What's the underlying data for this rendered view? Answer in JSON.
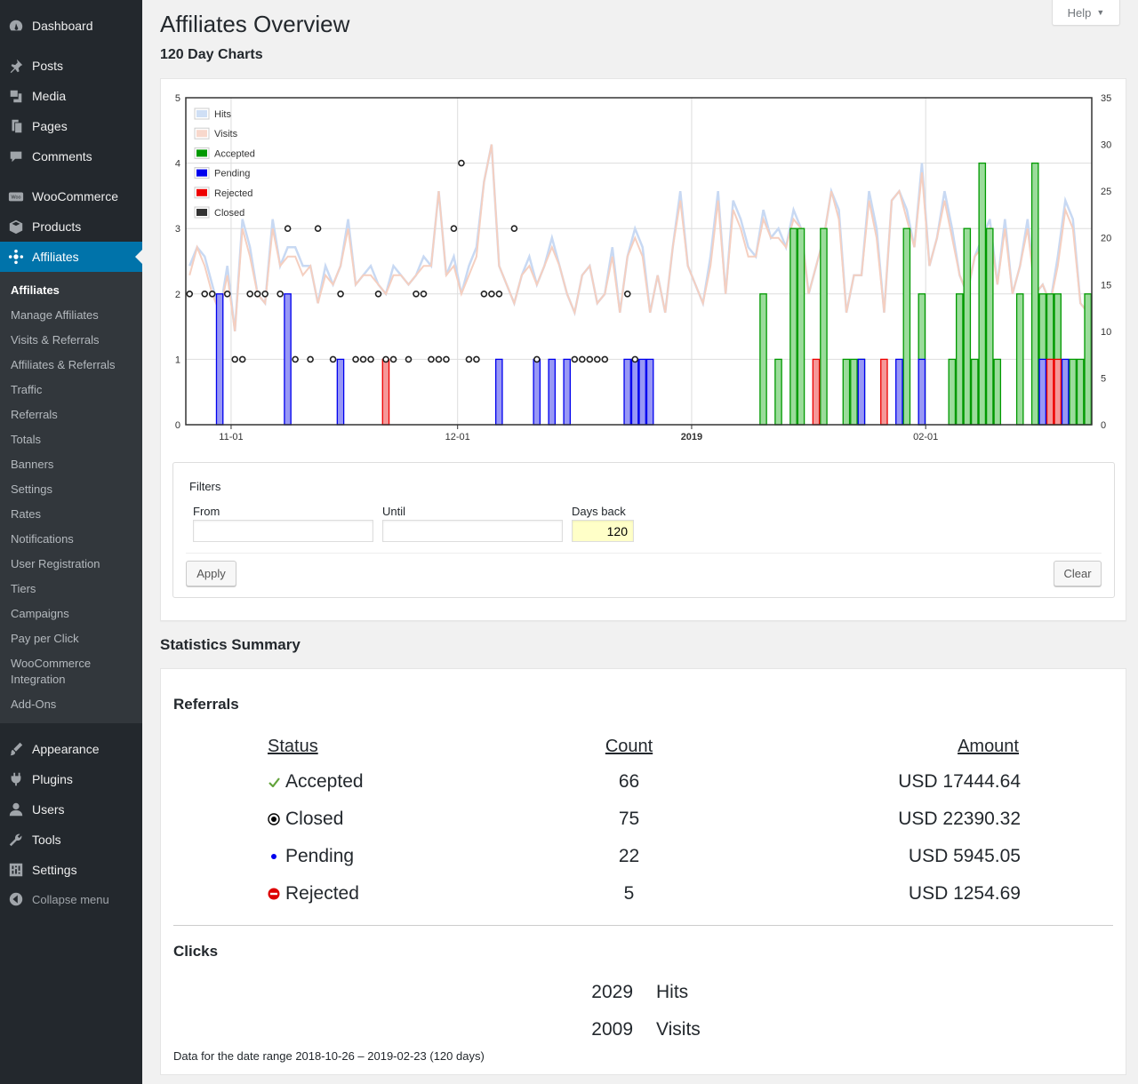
{
  "sidebar": {
    "top_items": [
      {
        "label": "Dashboard",
        "icon": "dashboard-icon"
      },
      {
        "label": "Posts",
        "icon": "pin-icon"
      },
      {
        "label": "Media",
        "icon": "media-icon"
      },
      {
        "label": "Pages",
        "icon": "pages-icon"
      },
      {
        "label": "Comments",
        "icon": "comment-icon"
      },
      {
        "label": "WooCommerce",
        "icon": "woo-icon"
      },
      {
        "label": "Products",
        "icon": "box-icon"
      },
      {
        "label": "Affiliates",
        "icon": "affiliates-icon"
      }
    ],
    "sub_items": [
      "Affiliates",
      "Manage Affiliates",
      "Visits & Referrals",
      "Affiliates & Referrals",
      "Traffic",
      "Referrals",
      "Totals",
      "Banners",
      "Settings",
      "Rates",
      "Notifications",
      "User Registration",
      "Tiers",
      "Campaigns",
      "Pay per Click",
      "WooCommerce Integration",
      "Add-Ons"
    ],
    "bottom_items": [
      {
        "label": "Appearance",
        "icon": "brush-icon"
      },
      {
        "label": "Plugins",
        "icon": "plug-icon"
      },
      {
        "label": "Users",
        "icon": "user-icon"
      },
      {
        "label": "Tools",
        "icon": "wrench-icon"
      },
      {
        "label": "Settings",
        "icon": "settings-icon"
      }
    ],
    "collapse_label": "Collapse menu"
  },
  "header": {
    "help_label": "Help",
    "title": "Affiliates Overview",
    "subtitle": "120 Day Charts"
  },
  "chart_data": {
    "type": "bar",
    "x_tick_labels": [
      "11-01",
      "12-01",
      "2019",
      "02-01"
    ],
    "y_left_ticks": [
      "0",
      "1",
      "2",
      "3",
      "4",
      "5"
    ],
    "y_right_ticks": [
      "0",
      "5",
      "10",
      "15",
      "20",
      "25",
      "30",
      "35"
    ],
    "ylim_left": [
      0,
      5
    ],
    "ylim_right": [
      0,
      35
    ],
    "days": 120,
    "legend": [
      {
        "name": "Hits",
        "color": "#cfdff5"
      },
      {
        "name": "Visits",
        "color": "#f8d8cc"
      },
      {
        "name": "Accepted",
        "color": "#009900"
      },
      {
        "name": "Pending",
        "color": "#0000ee"
      },
      {
        "name": "Rejected",
        "color": "#ee0000"
      },
      {
        "name": "Closed",
        "color": "#333333"
      }
    ],
    "legend_placement": "top-left",
    "series": [
      {
        "name": "Accepted",
        "values": [
          0,
          0,
          0,
          0,
          0,
          0,
          0,
          0,
          0,
          0,
          0,
          0,
          0,
          0,
          0,
          0,
          0,
          0,
          0,
          0,
          0,
          0,
          0,
          0,
          0,
          0,
          0,
          0,
          0,
          0,
          0,
          0,
          0,
          0,
          0,
          0,
          0,
          0,
          0,
          0,
          0,
          0,
          0,
          0,
          0,
          0,
          0,
          0,
          0,
          0,
          0,
          0,
          0,
          0,
          0,
          0,
          0,
          0,
          0,
          0,
          0,
          0,
          0,
          0,
          0,
          0,
          0,
          0,
          0,
          0,
          0,
          0,
          0,
          0,
          0,
          0,
          2,
          0,
          1,
          0,
          3,
          3,
          0,
          0,
          3,
          0,
          0,
          1,
          1,
          1,
          0,
          0,
          0,
          0,
          0,
          3,
          0,
          2,
          0,
          0,
          0,
          1,
          2,
          3,
          1,
          4,
          3,
          1,
          0,
          0,
          2,
          0,
          4,
          2,
          2,
          2,
          0,
          1,
          1,
          2
        ]
      },
      {
        "name": "Pending",
        "values": [
          0,
          0,
          0,
          0,
          2,
          0,
          0,
          0,
          0,
          0,
          0,
          0,
          0,
          2,
          0,
          0,
          0,
          0,
          0,
          0,
          1,
          0,
          0,
          0,
          0,
          0,
          0,
          0,
          0,
          0,
          0,
          0,
          0,
          0,
          0,
          0,
          0,
          0,
          0,
          0,
          0,
          1,
          0,
          0,
          0,
          0,
          1,
          0,
          1,
          0,
          1,
          0,
          0,
          0,
          0,
          0,
          0,
          0,
          1,
          1,
          1,
          1,
          0,
          0,
          0,
          0,
          0,
          0,
          0,
          0,
          0,
          0,
          0,
          0,
          0,
          0,
          0,
          0,
          0,
          0,
          0,
          0,
          0,
          0,
          0,
          0,
          0,
          0,
          0,
          1,
          0,
          0,
          0,
          0,
          1,
          0,
          0,
          1,
          0,
          0,
          0,
          0,
          0,
          0,
          0,
          0,
          0,
          0,
          0,
          0,
          0,
          0,
          0,
          1,
          0,
          0,
          1,
          0,
          0,
          0
        ]
      },
      {
        "name": "Rejected",
        "values": [
          0,
          0,
          0,
          0,
          0,
          0,
          0,
          0,
          0,
          0,
          0,
          0,
          0,
          0,
          0,
          0,
          0,
          0,
          0,
          0,
          0,
          0,
          0,
          0,
          0,
          0,
          1,
          0,
          0,
          0,
          0,
          0,
          0,
          0,
          0,
          0,
          0,
          0,
          0,
          0,
          0,
          0,
          0,
          0,
          0,
          0,
          0,
          0,
          0,
          0,
          0,
          0,
          0,
          0,
          0,
          0,
          0,
          0,
          0,
          0,
          0,
          0,
          0,
          0,
          0,
          0,
          0,
          0,
          0,
          0,
          0,
          0,
          0,
          0,
          0,
          0,
          0,
          0,
          0,
          0,
          0,
          0,
          0,
          1,
          0,
          0,
          0,
          0,
          0,
          0,
          0,
          0,
          1,
          0,
          0,
          0,
          0,
          0,
          0,
          0,
          0,
          0,
          0,
          0,
          0,
          0,
          0,
          0,
          0,
          0,
          0,
          0,
          0,
          0,
          1,
          1,
          0,
          0,
          0,
          0
        ]
      },
      {
        "name": "Closed",
        "points": [
          [
            0,
            2
          ],
          [
            2,
            2
          ],
          [
            3,
            2
          ],
          [
            5,
            2
          ],
          [
            6,
            1
          ],
          [
            7,
            1
          ],
          [
            8,
            2
          ],
          [
            9,
            2
          ],
          [
            10,
            2
          ],
          [
            12,
            2
          ],
          [
            13,
            3
          ],
          [
            14,
            1
          ],
          [
            16,
            1
          ],
          [
            17,
            3
          ],
          [
            19,
            1
          ],
          [
            20,
            2
          ],
          [
            22,
            1
          ],
          [
            23,
            1
          ],
          [
            24,
            1
          ],
          [
            25,
            2
          ],
          [
            26,
            1
          ],
          [
            27,
            1
          ],
          [
            29,
            1
          ],
          [
            30,
            2
          ],
          [
            31,
            2
          ],
          [
            32,
            1
          ],
          [
            33,
            1
          ],
          [
            34,
            1
          ],
          [
            35,
            3
          ],
          [
            36,
            4
          ],
          [
            37,
            1
          ],
          [
            38,
            1
          ],
          [
            39,
            2
          ],
          [
            40,
            2
          ],
          [
            41,
            2
          ],
          [
            43,
            3
          ],
          [
            46,
            1
          ],
          [
            51,
            1
          ],
          [
            52,
            1
          ],
          [
            53,
            1
          ],
          [
            54,
            1
          ],
          [
            55,
            1
          ],
          [
            58,
            2
          ],
          [
            59,
            1
          ]
        ]
      },
      {
        "name": "Hits",
        "values": [
          17,
          19,
          18,
          15,
          12,
          17,
          10,
          22,
          19,
          14,
          13,
          22,
          17,
          19,
          19,
          17,
          17,
          13,
          17,
          15,
          17,
          22,
          15,
          16,
          17,
          15,
          14,
          17,
          16,
          15,
          16,
          18,
          17,
          25,
          16,
          18,
          14,
          17,
          19,
          26,
          30,
          17,
          15,
          13,
          16,
          18,
          15,
          17,
          20,
          17,
          14,
          12,
          16,
          17,
          13,
          14,
          19,
          12,
          18,
          21,
          19,
          12,
          16,
          12,
          19,
          25,
          17,
          15,
          13,
          18,
          25,
          14,
          24,
          22,
          19,
          18,
          23,
          20,
          21,
          19,
          23,
          21,
          14,
          17,
          20,
          25,
          23,
          12,
          16,
          16,
          25,
          21,
          12,
          24,
          25,
          23,
          19,
          28,
          17,
          20,
          25,
          21,
          16,
          14,
          18,
          20,
          22,
          15,
          22,
          14,
          17,
          22,
          14,
          15,
          13,
          18,
          24,
          22,
          13,
          12
        ]
      },
      {
        "name": "Visits",
        "values": [
          16,
          19,
          17,
          14,
          12,
          16,
          10,
          21,
          18,
          14,
          13,
          21,
          17,
          18,
          18,
          16,
          17,
          13,
          16,
          15,
          17,
          21,
          15,
          16,
          16,
          15,
          14,
          16,
          16,
          15,
          16,
          17,
          17,
          25,
          16,
          17,
          14,
          16,
          18,
          26,
          30,
          17,
          15,
          13,
          16,
          17,
          15,
          17,
          19,
          17,
          14,
          12,
          16,
          17,
          13,
          14,
          18,
          12,
          18,
          20,
          18,
          12,
          16,
          12,
          19,
          24,
          17,
          15,
          13,
          17,
          24,
          14,
          23,
          21,
          18,
          18,
          22,
          20,
          20,
          19,
          22,
          21,
          14,
          17,
          20,
          25,
          22,
          12,
          16,
          16,
          24,
          20,
          12,
          24,
          25,
          22,
          19,
          27,
          17,
          20,
          24,
          20,
          16,
          14,
          18,
          19,
          21,
          15,
          21,
          14,
          17,
          21,
          14,
          15,
          13,
          17,
          23,
          21,
          13,
          12
        ]
      }
    ]
  },
  "filters": {
    "title": "Filters",
    "from_label": "From",
    "until_label": "Until",
    "days_label": "Days back",
    "from_value": "",
    "until_value": "",
    "days_value": "120",
    "apply_label": "Apply",
    "clear_label": "Clear"
  },
  "stats": {
    "title": "Statistics Summary",
    "referrals_title": "Referrals",
    "columns": [
      "Status",
      "Count",
      "Amount"
    ],
    "rows": [
      {
        "status": "Accepted",
        "count": "66",
        "amount": "USD 17444.64",
        "icon": "check-icon",
        "color": "#64a43c"
      },
      {
        "status": "Closed",
        "count": "75",
        "amount": "USD 22390.32",
        "icon": "target-icon",
        "color": "#000000"
      },
      {
        "status": "Pending",
        "count": "22",
        "amount": "USD 5945.05",
        "icon": "dot-icon",
        "color": "#0000ee"
      },
      {
        "status": "Rejected",
        "count": "5",
        "amount": "USD 1254.69",
        "icon": "no-entry-icon",
        "color": "#dd0000"
      }
    ],
    "clicks_title": "Clicks",
    "clicks": [
      {
        "value": "2029",
        "label": "Hits"
      },
      {
        "value": "2009",
        "label": "Visits"
      }
    ],
    "range_note": "Data for the date range 2018-10-26 – 2019-02-23 (120 days)"
  }
}
